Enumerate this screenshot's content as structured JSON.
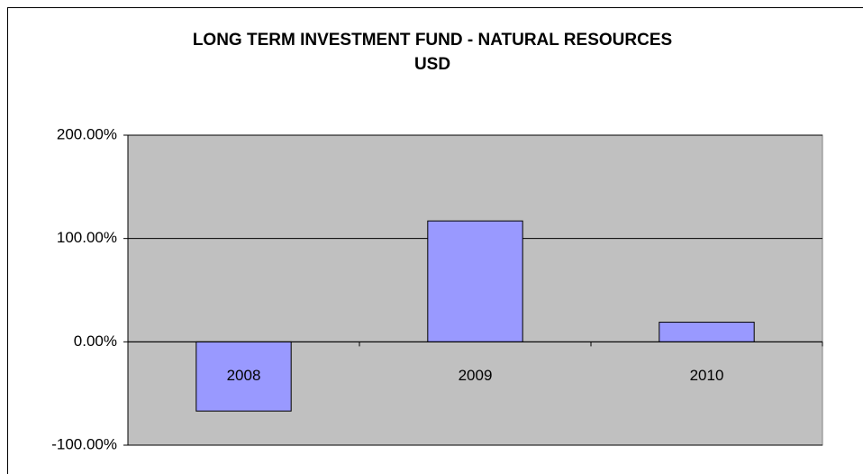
{
  "chart_data": {
    "type": "bar",
    "title": "LONG TERM INVESTMENT FUND - NATURAL RESOURCES",
    "subtitle": "USD",
    "categories": [
      "2008",
      "2009",
      "2010"
    ],
    "values": [
      -67,
      117,
      19
    ],
    "color": "#9999ff",
    "ylim": [
      -100,
      200
    ],
    "yticks": [
      {
        "value": -100,
        "label": "-100.00%"
      },
      {
        "value": 0,
        "label": "0.00%"
      },
      {
        "value": 100,
        "label": "100.00%"
      },
      {
        "value": 200,
        "label": "200.00%"
      }
    ],
    "grid": true
  }
}
